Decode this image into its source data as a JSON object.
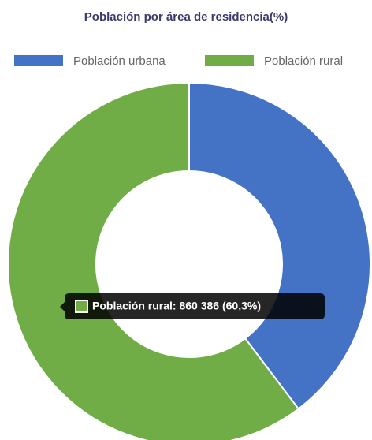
{
  "chart_data": {
    "type": "doughnut",
    "title": "Población por área de residencia(%)",
    "categories": [
      "Población urbana",
      "Población rural"
    ],
    "values": [
      39.7,
      60.3
    ],
    "colors": [
      "#4472c4",
      "#70ad47"
    ],
    "legend": "top",
    "tooltip": "Población rural: 860 386 (60,3%)"
  }
}
